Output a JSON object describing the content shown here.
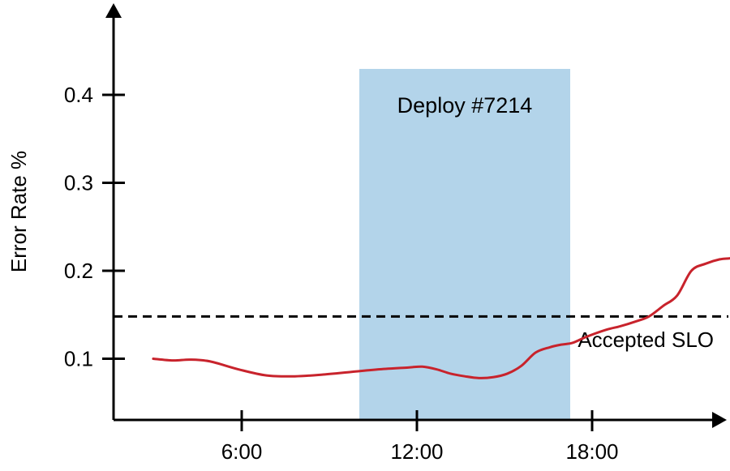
{
  "chart_data": {
    "type": "line",
    "title": "",
    "xlabel": "",
    "ylabel": "Error Rate %",
    "x_ticks": [
      "6:00",
      "12:00",
      "18:00"
    ],
    "y_ticks": [
      "0.1",
      "0.2",
      "0.3",
      "0.4"
    ],
    "x_unit": "hours",
    "xlim": [
      0,
      22.5
    ],
    "ylim": [
      0.03,
      0.47
    ],
    "grid": false,
    "series": [
      {
        "name": "",
        "color": "#c8232c",
        "x": [
          1,
          1.7,
          2.3,
          3,
          4,
          5,
          6,
          7,
          8,
          9,
          10,
          10.5,
          11,
          11.5,
          12,
          12.5,
          13,
          13.5,
          14,
          14.5,
          15,
          15.4,
          15.8,
          16.3,
          17,
          17.5,
          18,
          18.5,
          19,
          19.5,
          20,
          20.5,
          21,
          21.5,
          22,
          22.5,
          23,
          23.5
        ],
        "y": [
          0.1,
          0.098,
          0.099,
          0.097,
          0.088,
          0.081,
          0.08,
          0.082,
          0.085,
          0.088,
          0.09,
          0.091,
          0.088,
          0.083,
          0.08,
          0.078,
          0.079,
          0.083,
          0.092,
          0.107,
          0.113,
          0.116,
          0.118,
          0.125,
          0.133,
          0.137,
          0.142,
          0.148,
          0.16,
          0.172,
          0.2,
          0.208,
          0.213,
          0.215,
          0.222,
          0.229,
          0.231,
          0.237
        ]
      }
    ],
    "reference_line": {
      "label": "Accepted SLO",
      "y": 0.148,
      "style": "dashed"
    },
    "shaded_region": {
      "label": "Deploy #7214",
      "x_start": 10.75,
      "x_end": 17.5,
      "color": "#b3d4ea"
    }
  }
}
